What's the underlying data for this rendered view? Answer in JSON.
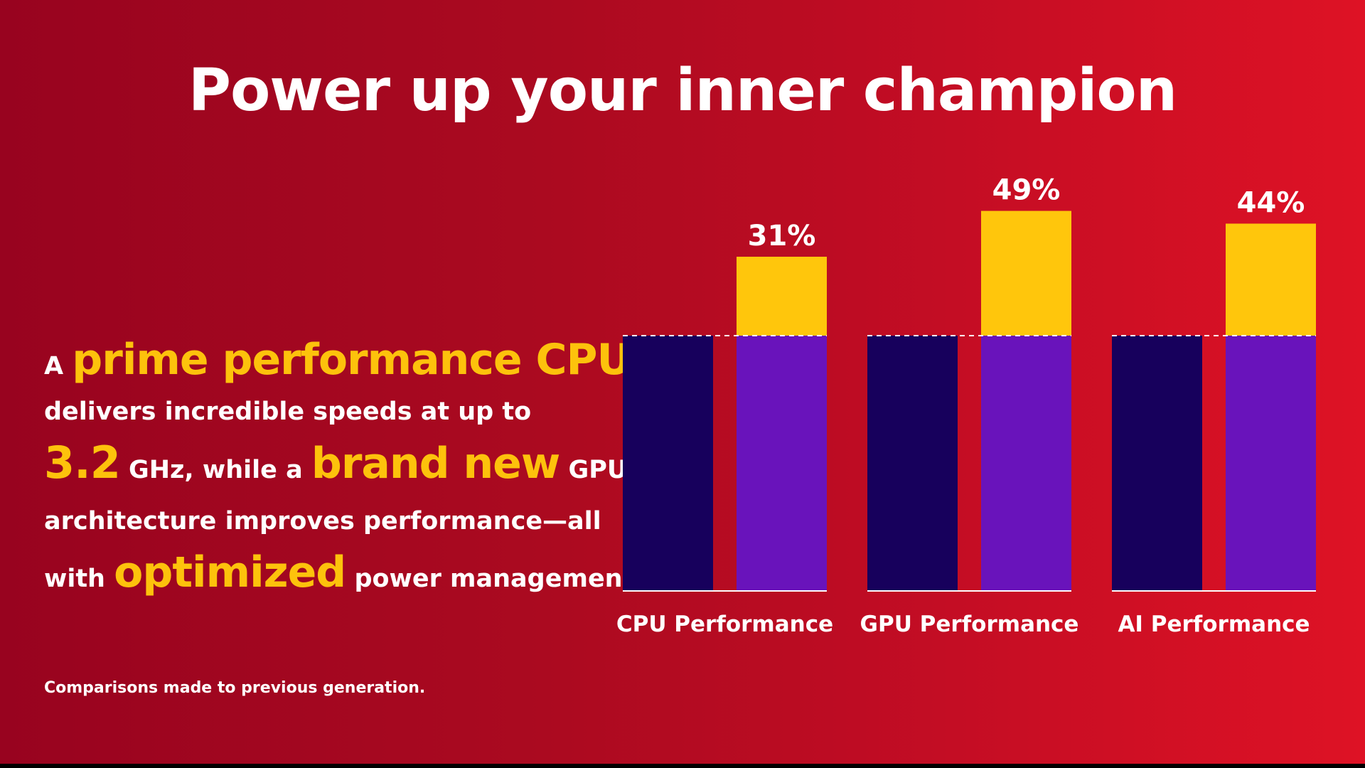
{
  "slide": {
    "title": "Power up your inner champion",
    "copy": {
      "line1_a": "A",
      "line1_b": "prime performance CPU",
      "line2": "delivers incredible speeds at up to",
      "line3_a": "3.2",
      "line3_b": "GHz, while a",
      "line3_c": "brand new",
      "line3_d": "GPU",
      "line4": "architecture improves performance—all",
      "line5_a": "with",
      "line5_b": "optimized",
      "line5_c": "power management."
    },
    "footnote": "Comparisons made to previous generation."
  },
  "colors": {
    "previous_generation": "#17005c",
    "new_generation": "#6913bb",
    "gain": "#ffc60c",
    "highlight_text": "#fdc20c",
    "background_left": "#98031f",
    "background_right": "#de1225"
  },
  "chart_data": {
    "type": "bar",
    "stacked_gain": true,
    "categories": [
      "CPU Performance",
      "GPU Performance",
      "AI Performance"
    ],
    "baseline": 100,
    "series": [
      {
        "values": [
          100,
          100,
          100
        ],
        "color": "#17005c"
      },
      {
        "values": [
          131,
          149,
          144
        ],
        "color": "#6913bb",
        "gain_color": "#ffc60c"
      }
    ],
    "data_labels": [
      "31%",
      "49%",
      "44%"
    ],
    "title": "",
    "xlabel": "",
    "ylabel": "",
    "ylim": [
      0,
      149
    ],
    "grid": false,
    "legend": "none",
    "baseline_reference_line": "dashed"
  }
}
